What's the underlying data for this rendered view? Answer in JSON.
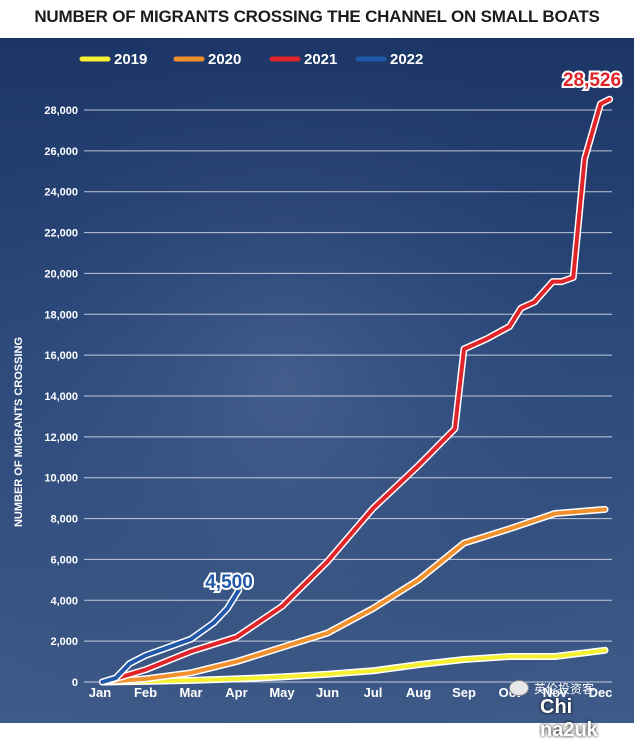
{
  "chart_data": {
    "type": "line",
    "title": "NUMBER OF MIGRANTS CROSSING THE CHANNEL ON SMALL BOATS",
    "ylabel": "NUMBER OF MIGRANTS CROSSING",
    "xlabel": "",
    "ylim": [
      0,
      28000
    ],
    "yticks": [
      0,
      2000,
      4000,
      6000,
      8000,
      10000,
      12000,
      14000,
      16000,
      18000,
      20000,
      22000,
      24000,
      26000,
      28000
    ],
    "ytick_labels": [
      "0",
      "2,000",
      "4,000",
      "6,000",
      "8,000",
      "10,000",
      "12,000",
      "14,000",
      "16,000",
      "18,000",
      "20,000",
      "22,000",
      "24,000",
      "26,000",
      "28,000"
    ],
    "categories": [
      "Jan",
      "Feb",
      "Mar",
      "Apr",
      "May",
      "Jun",
      "Jul",
      "Aug",
      "Sep",
      "Oct",
      "Nov",
      "Dec"
    ],
    "grid": "horizontal",
    "legend_position": "top",
    "series": [
      {
        "name": "2019",
        "color": "#f5f032",
        "points": [
          [
            0.1,
            0
          ],
          [
            1,
            30
          ],
          [
            2,
            80
          ],
          [
            3,
            150
          ],
          [
            4,
            250
          ],
          [
            5,
            380
          ],
          [
            6,
            550
          ],
          [
            7,
            850
          ],
          [
            8,
            1100
          ],
          [
            9,
            1250
          ],
          [
            10,
            1250
          ],
          [
            11.1,
            1550
          ]
        ]
      },
      {
        "name": "2020",
        "color": "#f0912e",
        "points": [
          [
            0.1,
            0
          ],
          [
            1,
            150
          ],
          [
            2,
            450
          ],
          [
            3,
            1000
          ],
          [
            4,
            1700
          ],
          [
            5,
            2400
          ],
          [
            6,
            3600
          ],
          [
            7,
            5000
          ],
          [
            8,
            6800
          ],
          [
            9,
            7500
          ],
          [
            10,
            8250
          ],
          [
            11.1,
            8450
          ]
        ]
      },
      {
        "name": "2021",
        "color": "#e0252a",
        "points": [
          [
            0.1,
            0
          ],
          [
            1,
            600
          ],
          [
            2,
            1500
          ],
          [
            3,
            2200
          ],
          [
            4,
            3700
          ],
          [
            5,
            5900
          ],
          [
            6,
            8500
          ],
          [
            7,
            10600
          ],
          [
            7.8,
            12400
          ],
          [
            8,
            16300
          ],
          [
            8.5,
            16800
          ],
          [
            9,
            17400
          ],
          [
            9.25,
            18300
          ],
          [
            9.55,
            18600
          ],
          [
            9.75,
            19100
          ],
          [
            9.95,
            19600
          ],
          [
            10.15,
            19600
          ],
          [
            10.4,
            19800
          ],
          [
            10.65,
            25600
          ],
          [
            11,
            28300
          ],
          [
            11.2,
            28526
          ]
        ]
      },
      {
        "name": "2022",
        "color": "#2158a8",
        "points": [
          [
            0.05,
            0
          ],
          [
            0.35,
            200
          ],
          [
            0.65,
            900
          ],
          [
            1,
            1300
          ],
          [
            1.5,
            1700
          ],
          [
            2,
            2100
          ],
          [
            2.5,
            2900
          ],
          [
            2.8,
            3600
          ],
          [
            3.05,
            4500
          ]
        ]
      }
    ],
    "annotations": [
      {
        "text": "28,526",
        "series": "2021",
        "color": "#e0252a"
      },
      {
        "text": "4,500",
        "series": "2022",
        "color": "#2158a8"
      }
    ]
  },
  "watermark": {
    "chinese": "英伦投资客",
    "site": "Chi na2uk"
  }
}
